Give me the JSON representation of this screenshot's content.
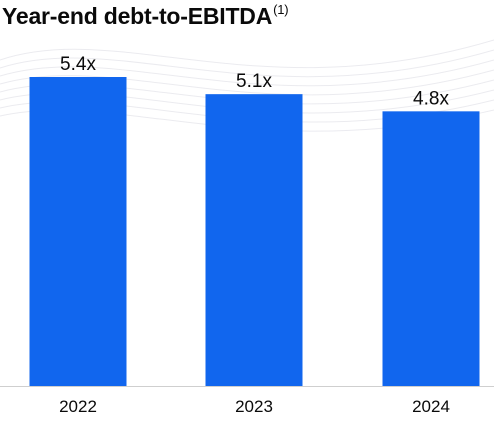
{
  "chart_data": {
    "type": "bar",
    "title": "Year-end debt-to-EBITDA",
    "title_footnote": "(1)",
    "categories": [
      "2022",
      "2023",
      "2024"
    ],
    "values": [
      5.4,
      5.1,
      4.8
    ],
    "data_labels": [
      "5.4x",
      "5.1x",
      "4.8x"
    ],
    "xlabel": "",
    "ylabel": "",
    "ylim": [
      0,
      5.4
    ],
    "grid": false,
    "legend": "none",
    "bar_color": "#1166ee"
  }
}
